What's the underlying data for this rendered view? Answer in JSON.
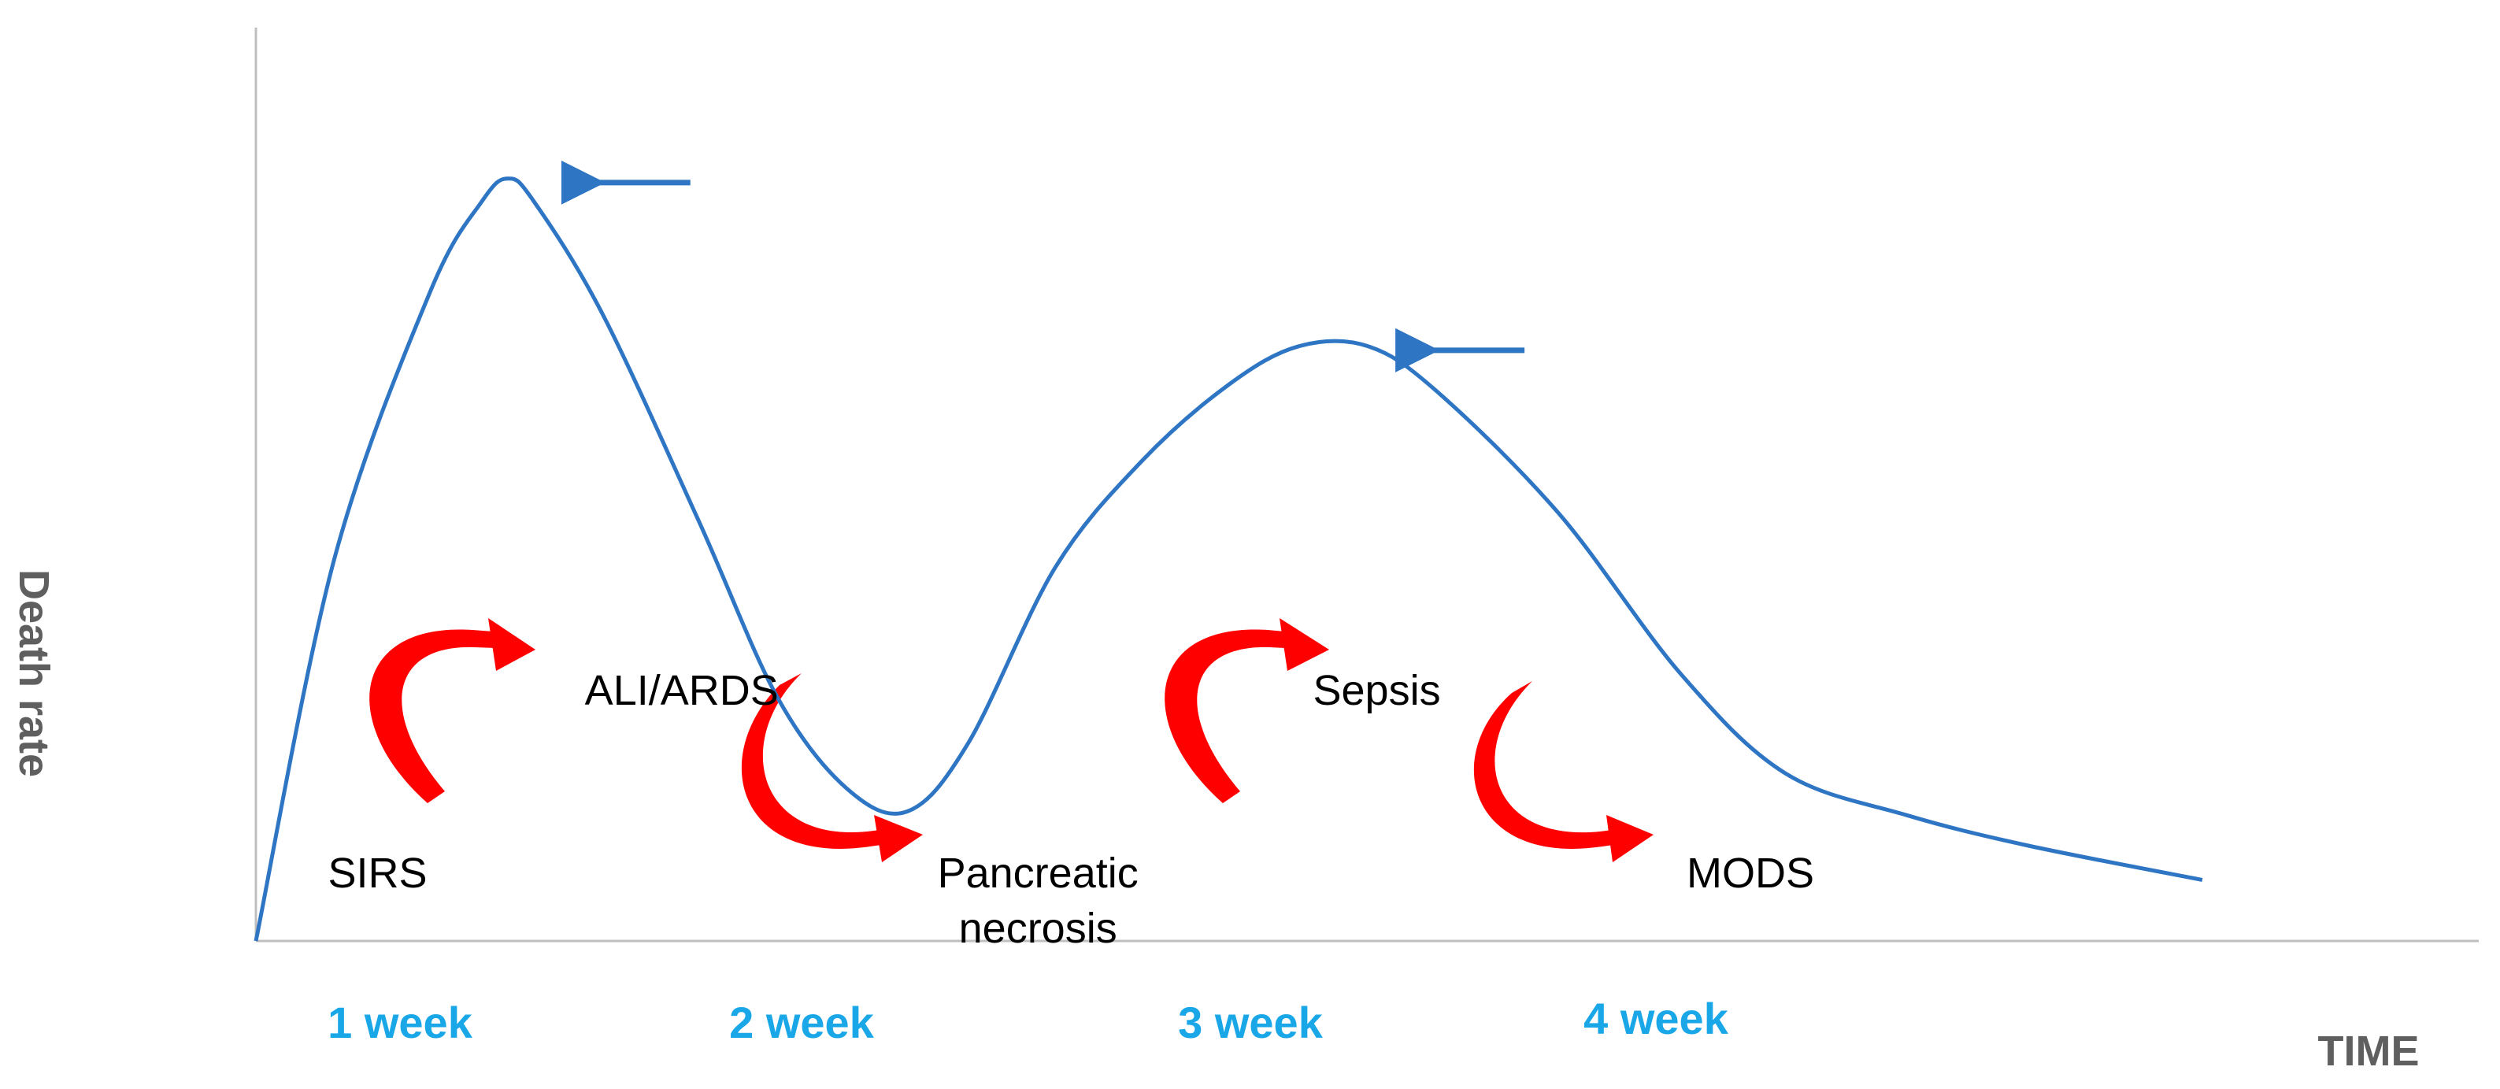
{
  "chart_data": {
    "type": "line",
    "title": "",
    "xlabel": "TIME",
    "ylabel": "Death rate",
    "x_ticks": [
      "1 week",
      "2 week",
      "3 week",
      "4 week"
    ],
    "series": [
      {
        "values": [
          {
            "x": 0.0,
            "y": 0.0
          },
          {
            "x": 0.45,
            "y": 0.5
          },
          {
            "x": 1.0,
            "y": 0.85
          },
          {
            "x": 1.3,
            "y": 0.97
          },
          {
            "x": 1.45,
            "y": 1.0
          },
          {
            "x": 1.6,
            "y": 0.97
          },
          {
            "x": 2.0,
            "y": 0.82
          },
          {
            "x": 2.55,
            "y": 0.55
          },
          {
            "x": 3.0,
            "y": 0.32
          },
          {
            "x": 3.4,
            "y": 0.2
          },
          {
            "x": 3.75,
            "y": 0.17
          },
          {
            "x": 4.1,
            "y": 0.26
          },
          {
            "x": 4.6,
            "y": 0.49
          },
          {
            "x": 5.1,
            "y": 0.63
          },
          {
            "x": 5.6,
            "y": 0.73
          },
          {
            "x": 6.0,
            "y": 0.78
          },
          {
            "x": 6.4,
            "y": 0.78
          },
          {
            "x": 6.8,
            "y": 0.72
          },
          {
            "x": 7.5,
            "y": 0.56
          },
          {
            "x": 8.2,
            "y": 0.35
          },
          {
            "x": 8.8,
            "y": 0.22
          },
          {
            "x": 9.5,
            "y": 0.165
          },
          {
            "x": 10.2,
            "y": 0.125
          },
          {
            "x": 11.2,
            "y": 0.08
          }
        ]
      }
    ],
    "xlim": [
      0,
      12.8
    ],
    "ylim": [
      0,
      1.1
    ],
    "grid": false,
    "annotations": [
      {
        "text": "SIRS",
        "x": 0.7,
        "y": 0.07
      },
      {
        "text": "ALI/ARDS",
        "x": 2.45,
        "y": 0.31
      },
      {
        "text": "Pancreatic\nnecrosis",
        "x": 4.5,
        "y": 0.07
      },
      {
        "text": "Sepsis",
        "x": 6.45,
        "y": 0.31
      },
      {
        "text": "MODS",
        "x": 8.6,
        "y": 0.07
      }
    ],
    "peak_arrows": [
      {
        "x": 2.5,
        "y": 1.0
      },
      {
        "x": 7.3,
        "y": 0.78
      }
    ],
    "colors": {
      "line": "#2e75c4",
      "peak_arrow": "#2e75c4",
      "flow_arrow": "#ff0000",
      "week_labels": "#1aa7e8",
      "axis_title": "#5f5f5f",
      "axis": "#bfbfbf"
    }
  }
}
